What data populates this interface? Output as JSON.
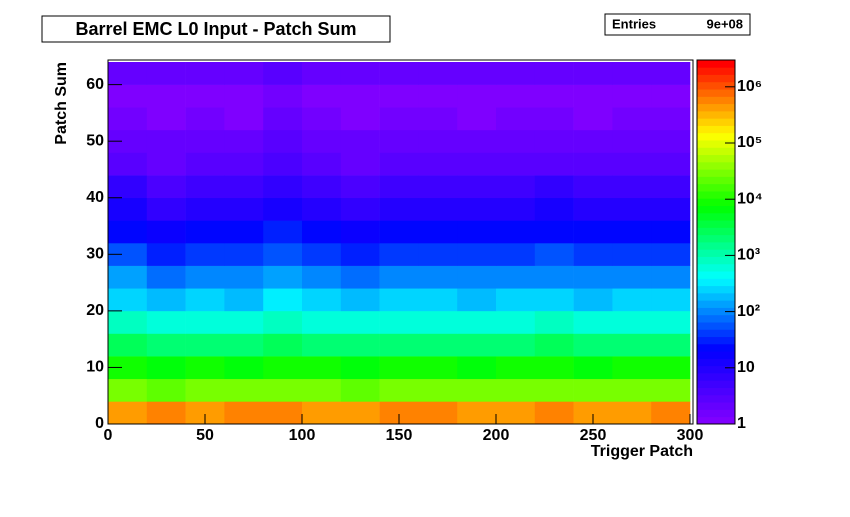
{
  "chart_data": {
    "type": "heatmap",
    "title": "Barrel EMC L0 Input - Patch Sum",
    "stats": {
      "label": "Entries",
      "value": "9e+08"
    },
    "xlabel": "Trigger Patch",
    "ylabel": "Patch Sum",
    "xbins": [
      0,
      20,
      40,
      60,
      80,
      100,
      120,
      140,
      160,
      180,
      200,
      220,
      240,
      260,
      280,
      300
    ],
    "ybins": [
      0,
      4,
      8,
      12,
      16,
      20,
      24,
      28,
      32,
      36,
      40,
      44,
      48,
      52,
      56,
      60,
      64
    ],
    "values": [
      [
        500000,
        520000,
        480000,
        510000,
        530000,
        490000,
        500000,
        520000,
        510000,
        500000,
        480000,
        510000,
        500000,
        490000,
        520000
      ],
      [
        30000,
        25000,
        28000,
        26000,
        32000,
        27000,
        25000,
        29000,
        28000,
        26000,
        27000,
        30000,
        26000,
        28000,
        29000
      ],
      [
        9000,
        7000,
        8000,
        7500,
        10000,
        8000,
        7000,
        8500,
        8000,
        7500,
        8000,
        9000,
        7500,
        8000,
        8500
      ],
      [
        2500,
        1800,
        2200,
        2000,
        3000,
        2100,
        1800,
        2300,
        2200,
        2000,
        2100,
        2500,
        2000,
        2200,
        2300
      ],
      [
        800,
        550,
        700,
        600,
        900,
        650,
        550,
        700,
        650,
        600,
        650,
        800,
        600,
        700,
        700
      ],
      [
        280,
        180,
        240,
        200,
        300,
        220,
        180,
        240,
        220,
        200,
        220,
        260,
        200,
        230,
        240
      ],
      [
        120,
        80,
        100,
        90,
        140,
        95,
        80,
        105,
        100,
        90,
        95,
        115,
        90,
        100,
        105
      ],
      [
        50,
        35,
        45,
        40,
        60,
        42,
        35,
        46,
        44,
        40,
        42,
        50,
        40,
        44,
        46
      ],
      [
        25,
        18,
        22,
        20,
        28,
        21,
        18,
        23,
        22,
        20,
        21,
        24,
        20,
        22,
        23
      ],
      [
        11,
        8,
        10,
        9,
        13,
        9,
        8,
        10,
        10,
        9,
        9,
        11,
        9,
        10,
        10
      ],
      [
        6,
        4,
        5,
        5,
        7,
        5,
        4,
        5,
        5,
        5,
        5,
        6,
        5,
        5,
        5
      ],
      [
        3,
        2,
        3,
        3,
        4,
        3,
        2,
        3,
        3,
        3,
        3,
        3,
        3,
        3,
        3
      ],
      [
        2,
        2,
        2,
        2,
        3,
        2,
        2,
        2,
        2,
        2,
        2,
        2,
        2,
        2,
        2
      ],
      [
        1.5,
        1.2,
        1.4,
        1.3,
        2,
        1.4,
        1.2,
        1.4,
        1.4,
        1.3,
        1.4,
        1.5,
        1.3,
        1.4,
        1.4
      ],
      [
        1.2,
        1,
        1.1,
        1.1,
        1.5,
        1.1,
        1,
        1.1,
        1.1,
        1.1,
        1.1,
        1.2,
        1.1,
        1.1,
        1.1
      ],
      [
        2,
        2,
        2,
        2,
        2.5,
        2,
        2,
        2,
        2,
        2,
        2,
        2,
        2,
        2,
        2
      ]
    ],
    "xlim": [
      0,
      300
    ],
    "ylim": [
      0,
      64
    ],
    "zlim": [
      1,
      3000000
    ],
    "zlog": true,
    "xticks": [
      0,
      50,
      100,
      150,
      200,
      250,
      300
    ],
    "yticks": [
      0,
      10,
      20,
      30,
      40,
      50,
      60
    ],
    "zticks": [
      1,
      10,
      {
        "value": 100,
        "label": "10²"
      },
      {
        "value": 1000,
        "label": "10³"
      },
      {
        "value": 10000,
        "label": "10⁴"
      },
      {
        "value": 100000,
        "label": "10⁵"
      },
      {
        "value": 1000000,
        "label": "10⁶"
      }
    ],
    "palette": [
      "#7f00ff",
      "#0000ff",
      "#00ffff",
      "#00ff00",
      "#ffff00",
      "#ff0000"
    ]
  }
}
